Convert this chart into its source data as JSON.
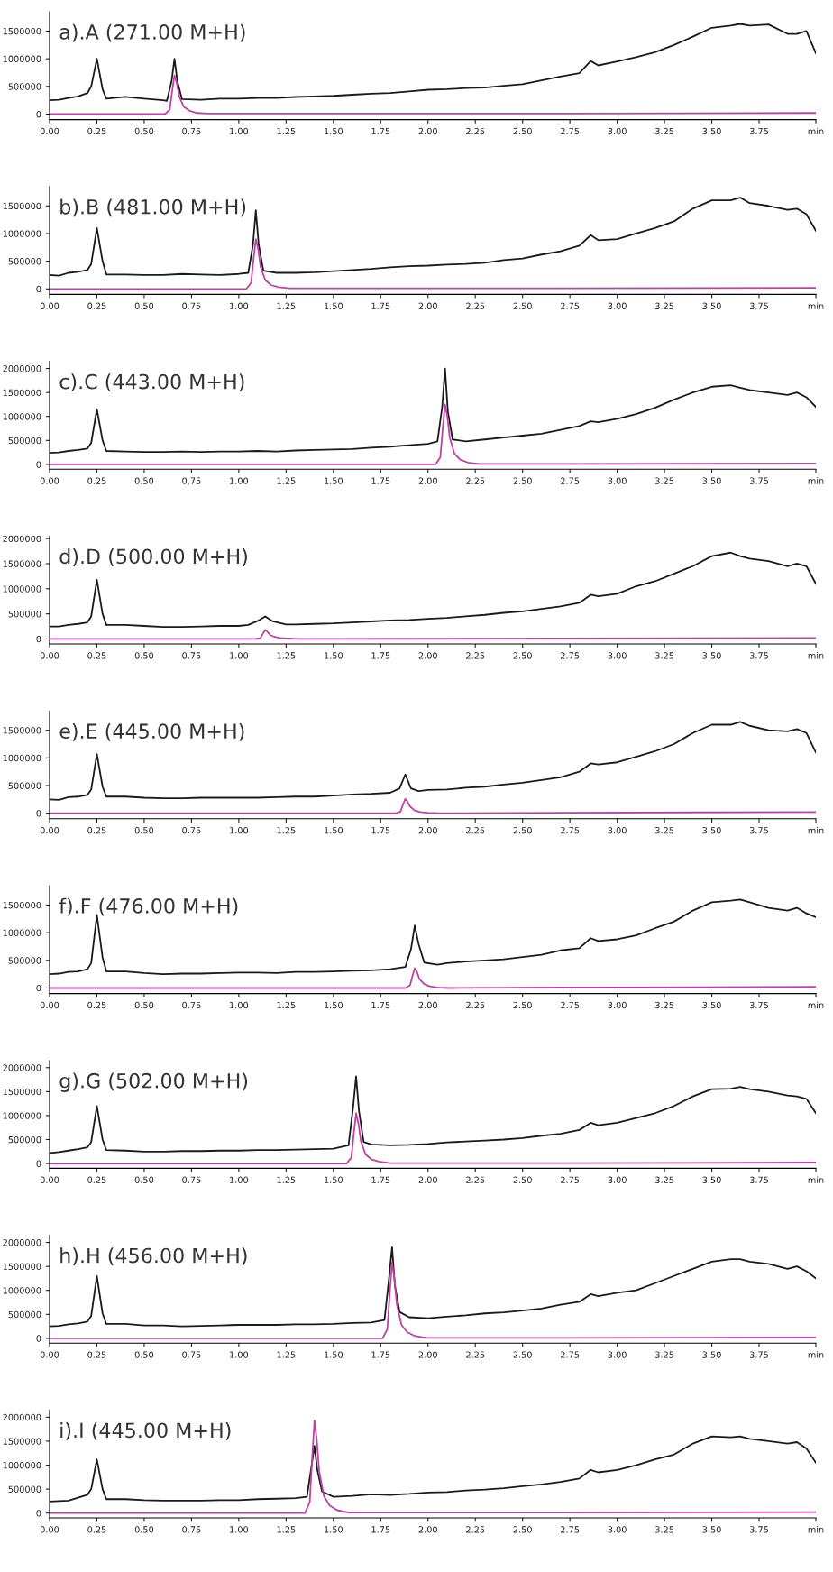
{
  "chart_data": [
    {
      "type": "line",
      "title": "a).A (271.00 M+H)",
      "ylim": [
        -100000,
        1850000
      ],
      "yticks": [
        0,
        500000,
        1000000,
        1500000
      ],
      "xlim": [
        0,
        4.05
      ],
      "xticks": [
        {
          "value": 0,
          "label": "0.00"
        },
        {
          "value": 0.25,
          "label": "0.25"
        },
        {
          "value": 0.5,
          "label": "0.50"
        },
        {
          "value": 0.75,
          "label": "0.75"
        },
        {
          "value": 1,
          "label": "1.00"
        },
        {
          "value": 1.25,
          "label": "1.25"
        },
        {
          "value": 1.5,
          "label": "1.50"
        },
        {
          "value": 1.75,
          "label": "1.75"
        },
        {
          "value": 2,
          "label": "2.00"
        },
        {
          "value": 2.25,
          "label": "2.25"
        },
        {
          "value": 2.5,
          "label": "2.50"
        },
        {
          "value": 2.75,
          "label": "2.75"
        },
        {
          "value": 3,
          "label": "3.00"
        },
        {
          "value": 3.25,
          "label": "3.25"
        },
        {
          "value": 3.5,
          "label": "3.50"
        },
        {
          "value": 3.75,
          "label": "3.75"
        },
        {
          "value": 4.05,
          "label": "min"
        }
      ],
      "grid": false,
      "marker": "none",
      "line_style": "solid",
      "series": [
        {
          "color": "#1a1a1a",
          "x": [
            0,
            0.05,
            0.1,
            0.15,
            0.2,
            0.22,
            0.25,
            0.28,
            0.3,
            0.4,
            0.5,
            0.6,
            0.62,
            0.645,
            0.66,
            0.675,
            0.7,
            0.8,
            0.9,
            1.0,
            1.1,
            1.2,
            1.3,
            1.4,
            1.5,
            1.6,
            1.7,
            1.8,
            1.9,
            2.0,
            2.1,
            2.2,
            2.3,
            2.4,
            2.5,
            2.6,
            2.7,
            2.8,
            2.86,
            2.9,
            3.0,
            3.1,
            3.2,
            3.3,
            3.4,
            3.5,
            3.6,
            3.65,
            3.7,
            3.8,
            3.9,
            3.95,
            4.0,
            4.05
          ],
          "values": [
            250000,
            260000,
            290000,
            320000,
            380000,
            500000,
            1000000,
            450000,
            280000,
            310000,
            280000,
            250000,
            240000,
            600000,
            1000000,
            600000,
            270000,
            260000,
            280000,
            280000,
            290000,
            290000,
            310000,
            320000,
            330000,
            350000,
            370000,
            380000,
            410000,
            440000,
            450000,
            470000,
            480000,
            510000,
            540000,
            610000,
            680000,
            740000,
            960000,
            880000,
            950000,
            1030000,
            1120000,
            1250000,
            1400000,
            1560000,
            1600000,
            1630000,
            1600000,
            1620000,
            1450000,
            1450000,
            1500000,
            1100000
          ]
        },
        {
          "color": "#c040a8",
          "x": [
            0,
            0.61,
            0.635,
            0.648,
            0.66,
            0.672,
            0.685,
            0.71,
            0.74,
            0.78,
            0.84,
            2.7,
            4.05
          ],
          "values": [
            0,
            0,
            80000,
            420000,
            700000,
            560000,
            320000,
            130000,
            60000,
            20000,
            10000,
            10000,
            20000
          ]
        }
      ]
    },
    {
      "type": "line",
      "title": "b).B (481.00 M+H)",
      "ylim": [
        -100000,
        1850000
      ],
      "yticks": [
        0,
        500000,
        1000000,
        1500000
      ],
      "xlim": [
        0,
        4.05
      ],
      "xticks": [
        {
          "value": 0,
          "label": "0.00"
        },
        {
          "value": 0.25,
          "label": "0.25"
        },
        {
          "value": 0.5,
          "label": "0.50"
        },
        {
          "value": 0.75,
          "label": "0.75"
        },
        {
          "value": 1,
          "label": "1.00"
        },
        {
          "value": 1.25,
          "label": "1.25"
        },
        {
          "value": 1.5,
          "label": "1.50"
        },
        {
          "value": 1.75,
          "label": "1.75"
        },
        {
          "value": 2,
          "label": "2.00"
        },
        {
          "value": 2.25,
          "label": "2.25"
        },
        {
          "value": 2.5,
          "label": "2.50"
        },
        {
          "value": 2.75,
          "label": "2.75"
        },
        {
          "value": 3,
          "label": "3.00"
        },
        {
          "value": 3.25,
          "label": "3.25"
        },
        {
          "value": 3.5,
          "label": "3.50"
        },
        {
          "value": 3.75,
          "label": "3.75"
        },
        {
          "value": 4.05,
          "label": "min"
        }
      ],
      "grid": false,
      "marker": "none",
      "line_style": "solid",
      "series": [
        {
          "color": "#1a1a1a",
          "x": [
            0,
            0.05,
            0.1,
            0.15,
            0.2,
            0.22,
            0.25,
            0.28,
            0.3,
            0.4,
            0.5,
            0.6,
            0.7,
            0.8,
            0.9,
            1.0,
            1.05,
            1.075,
            1.09,
            1.105,
            1.13,
            1.2,
            1.3,
            1.4,
            1.5,
            1.6,
            1.7,
            1.8,
            1.9,
            2.0,
            2.1,
            2.2,
            2.3,
            2.4,
            2.5,
            2.6,
            2.7,
            2.8,
            2.86,
            2.9,
            3.0,
            3.1,
            3.2,
            3.3,
            3.4,
            3.5,
            3.6,
            3.65,
            3.7,
            3.8,
            3.9,
            3.95,
            4.0,
            4.05
          ],
          "values": [
            250000,
            240000,
            290000,
            310000,
            340000,
            450000,
            1100000,
            500000,
            260000,
            260000,
            250000,
            250000,
            270000,
            260000,
            250000,
            270000,
            290000,
            800000,
            1420000,
            800000,
            330000,
            290000,
            290000,
            300000,
            320000,
            340000,
            360000,
            390000,
            410000,
            420000,
            440000,
            450000,
            470000,
            520000,
            550000,
            620000,
            680000,
            780000,
            970000,
            880000,
            900000,
            1000000,
            1100000,
            1220000,
            1450000,
            1600000,
            1600000,
            1650000,
            1550000,
            1500000,
            1430000,
            1450000,
            1350000,
            1050000
          ]
        },
        {
          "color": "#c040a8",
          "x": [
            0,
            1.04,
            1.065,
            1.078,
            1.09,
            1.102,
            1.115,
            1.14,
            1.17,
            1.21,
            1.27,
            2.7,
            4.05
          ],
          "values": [
            0,
            0,
            110000,
            540000,
            900000,
            720000,
            400000,
            160000,
            70000,
            30000,
            10000,
            10000,
            20000
          ]
        }
      ]
    },
    {
      "type": "line",
      "title": "c).C (443.00 M+H)",
      "ylim": [
        -100000,
        2150000
      ],
      "yticks": [
        0,
        500000,
        1000000,
        1500000,
        2000000
      ],
      "xlim": [
        0,
        4.05
      ],
      "xticks": [
        {
          "value": 0,
          "label": "0.00"
        },
        {
          "value": 0.25,
          "label": "0.25"
        },
        {
          "value": 0.5,
          "label": "0.50"
        },
        {
          "value": 0.75,
          "label": "0.75"
        },
        {
          "value": 1,
          "label": "1.00"
        },
        {
          "value": 1.25,
          "label": "1.25"
        },
        {
          "value": 1.5,
          "label": "1.50"
        },
        {
          "value": 1.75,
          "label": "1.75"
        },
        {
          "value": 2,
          "label": "2.00"
        },
        {
          "value": 2.25,
          "label": "2.25"
        },
        {
          "value": 2.5,
          "label": "2.50"
        },
        {
          "value": 2.75,
          "label": "2.75"
        },
        {
          "value": 3,
          "label": "3.00"
        },
        {
          "value": 3.25,
          "label": "3.25"
        },
        {
          "value": 3.5,
          "label": "3.50"
        },
        {
          "value": 3.75,
          "label": "3.75"
        },
        {
          "value": 4.05,
          "label": "min"
        }
      ],
      "grid": false,
      "marker": "none",
      "line_style": "solid",
      "series": [
        {
          "color": "#1a1a1a",
          "x": [
            0,
            0.05,
            0.1,
            0.15,
            0.2,
            0.22,
            0.25,
            0.28,
            0.3,
            0.4,
            0.5,
            0.6,
            0.7,
            0.8,
            0.9,
            1.0,
            1.1,
            1.2,
            1.3,
            1.4,
            1.5,
            1.6,
            1.7,
            1.8,
            1.9,
            2.0,
            2.05,
            2.075,
            2.09,
            2.105,
            2.13,
            2.2,
            2.3,
            2.4,
            2.5,
            2.6,
            2.7,
            2.8,
            2.86,
            2.9,
            3.0,
            3.1,
            3.2,
            3.3,
            3.4,
            3.5,
            3.6,
            3.65,
            3.7,
            3.8,
            3.9,
            3.95,
            4.0,
            4.05
          ],
          "values": [
            240000,
            250000,
            280000,
            300000,
            330000,
            450000,
            1150000,
            500000,
            280000,
            270000,
            260000,
            260000,
            270000,
            260000,
            270000,
            270000,
            280000,
            270000,
            290000,
            300000,
            310000,
            320000,
            350000,
            370000,
            400000,
            430000,
            480000,
            1200000,
            2000000,
            1100000,
            520000,
            480000,
            520000,
            560000,
            600000,
            640000,
            720000,
            800000,
            900000,
            880000,
            950000,
            1050000,
            1180000,
            1350000,
            1500000,
            1620000,
            1650000,
            1600000,
            1550000,
            1500000,
            1450000,
            1500000,
            1400000,
            1200000
          ]
        },
        {
          "color": "#c040a8",
          "x": [
            0,
            2.04,
            2.065,
            2.078,
            2.09,
            2.102,
            2.115,
            2.14,
            2.17,
            2.21,
            2.27,
            2.7,
            4.05
          ],
          "values": [
            0,
            0,
            150000,
            750000,
            1250000,
            1000000,
            560000,
            220000,
            100000,
            40000,
            10000,
            10000,
            20000
          ]
        }
      ]
    },
    {
      "type": "line",
      "title": "d).D (500.00 M+H)",
      "ylim": [
        -100000,
        2050000
      ],
      "yticks": [
        0,
        500000,
        1000000,
        1500000,
        2000000
      ],
      "xlim": [
        0,
        4.05
      ],
      "xticks": [
        {
          "value": 0,
          "label": "0.00"
        },
        {
          "value": 0.25,
          "label": "0.25"
        },
        {
          "value": 0.5,
          "label": "0.50"
        },
        {
          "value": 0.75,
          "label": "0.75"
        },
        {
          "value": 1,
          "label": "1.00"
        },
        {
          "value": 1.25,
          "label": "1.25"
        },
        {
          "value": 1.5,
          "label": "1.50"
        },
        {
          "value": 1.75,
          "label": "1.75"
        },
        {
          "value": 2,
          "label": "2.00"
        },
        {
          "value": 2.25,
          "label": "2.25"
        },
        {
          "value": 2.5,
          "label": "2.50"
        },
        {
          "value": 2.75,
          "label": "2.75"
        },
        {
          "value": 3,
          "label": "3.00"
        },
        {
          "value": 3.25,
          "label": "3.25"
        },
        {
          "value": 3.5,
          "label": "3.50"
        },
        {
          "value": 3.75,
          "label": "3.75"
        },
        {
          "value": 4.05,
          "label": "min"
        }
      ],
      "grid": false,
      "marker": "none",
      "line_style": "solid",
      "series": [
        {
          "color": "#1a1a1a",
          "x": [
            0,
            0.05,
            0.1,
            0.15,
            0.2,
            0.22,
            0.25,
            0.28,
            0.3,
            0.4,
            0.5,
            0.6,
            0.7,
            0.8,
            0.9,
            1.0,
            1.05,
            1.1,
            1.14,
            1.18,
            1.25,
            1.3,
            1.4,
            1.5,
            1.6,
            1.7,
            1.8,
            1.9,
            2.0,
            2.1,
            2.2,
            2.3,
            2.4,
            2.5,
            2.6,
            2.7,
            2.8,
            2.86,
            2.9,
            3.0,
            3.1,
            3.2,
            3.3,
            3.4,
            3.5,
            3.6,
            3.65,
            3.7,
            3.8,
            3.9,
            3.95,
            4.0,
            4.05
          ],
          "values": [
            250000,
            250000,
            280000,
            300000,
            330000,
            450000,
            1180000,
            500000,
            280000,
            280000,
            260000,
            240000,
            240000,
            250000,
            260000,
            260000,
            280000,
            360000,
            450000,
            350000,
            290000,
            290000,
            300000,
            310000,
            330000,
            350000,
            370000,
            380000,
            400000,
            420000,
            450000,
            480000,
            520000,
            550000,
            600000,
            650000,
            720000,
            880000,
            850000,
            900000,
            1050000,
            1150000,
            1300000,
            1450000,
            1650000,
            1720000,
            1650000,
            1600000,
            1550000,
            1450000,
            1500000,
            1450000,
            1100000
          ]
        },
        {
          "color": "#c040a8",
          "x": [
            0,
            1.09,
            1.115,
            1.128,
            1.14,
            1.152,
            1.165,
            1.19,
            1.22,
            1.26,
            1.32,
            2.7,
            4.05
          ],
          "values": [
            0,
            0,
            20000,
            110000,
            180000,
            140000,
            80000,
            40000,
            20000,
            10000,
            0,
            10000,
            20000
          ]
        }
      ]
    },
    {
      "type": "line",
      "title": "e).E (445.00 M+H)",
      "ylim": [
        -100000,
        1850000
      ],
      "yticks": [
        0,
        500000,
        1000000,
        1500000
      ],
      "xlim": [
        0,
        4.05
      ],
      "xticks": [
        {
          "value": 0,
          "label": "0.00"
        },
        {
          "value": 0.25,
          "label": "0.25"
        },
        {
          "value": 0.5,
          "label": "0.50"
        },
        {
          "value": 0.75,
          "label": "0.75"
        },
        {
          "value": 1,
          "label": "1.00"
        },
        {
          "value": 1.25,
          "label": "1.25"
        },
        {
          "value": 1.5,
          "label": "1.50"
        },
        {
          "value": 1.75,
          "label": "1.75"
        },
        {
          "value": 2,
          "label": "2.00"
        },
        {
          "value": 2.25,
          "label": "2.25"
        },
        {
          "value": 2.5,
          "label": "2.50"
        },
        {
          "value": 2.75,
          "label": "2.75"
        },
        {
          "value": 3,
          "label": "3.00"
        },
        {
          "value": 3.25,
          "label": "3.25"
        },
        {
          "value": 3.5,
          "label": "3.50"
        },
        {
          "value": 3.75,
          "label": "3.75"
        },
        {
          "value": 4.05,
          "label": "min"
        }
      ],
      "grid": false,
      "marker": "none",
      "line_style": "solid",
      "series": [
        {
          "color": "#1a1a1a",
          "x": [
            0,
            0.05,
            0.1,
            0.15,
            0.2,
            0.22,
            0.25,
            0.28,
            0.3,
            0.4,
            0.5,
            0.6,
            0.7,
            0.8,
            0.9,
            1.0,
            1.1,
            1.2,
            1.3,
            1.4,
            1.5,
            1.6,
            1.7,
            1.8,
            1.85,
            1.88,
            1.91,
            1.95,
            2.0,
            2.1,
            2.2,
            2.3,
            2.4,
            2.5,
            2.6,
            2.7,
            2.8,
            2.86,
            2.9,
            3.0,
            3.1,
            3.2,
            3.3,
            3.4,
            3.5,
            3.6,
            3.65,
            3.7,
            3.8,
            3.9,
            3.95,
            4.0,
            4.05
          ],
          "values": [
            250000,
            240000,
            290000,
            300000,
            330000,
            430000,
            1070000,
            480000,
            300000,
            300000,
            280000,
            270000,
            270000,
            280000,
            280000,
            280000,
            280000,
            290000,
            300000,
            300000,
            320000,
            340000,
            350000,
            370000,
            450000,
            700000,
            450000,
            400000,
            420000,
            430000,
            460000,
            480000,
            520000,
            550000,
            600000,
            650000,
            750000,
            900000,
            880000,
            920000,
            1020000,
            1120000,
            1250000,
            1450000,
            1600000,
            1600000,
            1650000,
            1580000,
            1500000,
            1480000,
            1520000,
            1450000,
            1100000
          ]
        },
        {
          "color": "#c040a8",
          "x": [
            0,
            1.83,
            1.855,
            1.868,
            1.88,
            1.892,
            1.905,
            1.93,
            1.96,
            2.0,
            2.06,
            2.7,
            4.05
          ],
          "values": [
            0,
            0,
            30000,
            160000,
            260000,
            210000,
            120000,
            50000,
            20000,
            10000,
            0,
            10000,
            20000
          ]
        }
      ]
    },
    {
      "type": "line",
      "title": "f).F (476.00 M+H)",
      "ylim": [
        -100000,
        1850000
      ],
      "yticks": [
        0,
        500000,
        1000000,
        1500000
      ],
      "xlim": [
        0,
        4.05
      ],
      "xticks": [
        {
          "value": 0,
          "label": "0.00"
        },
        {
          "value": 0.25,
          "label": "0.25"
        },
        {
          "value": 0.5,
          "label": "0.50"
        },
        {
          "value": 0.75,
          "label": "0.75"
        },
        {
          "value": 1,
          "label": "1.00"
        },
        {
          "value": 1.25,
          "label": "1.25"
        },
        {
          "value": 1.5,
          "label": "1.50"
        },
        {
          "value": 1.75,
          "label": "1.75"
        },
        {
          "value": 2,
          "label": "2.00"
        },
        {
          "value": 2.25,
          "label": "2.25"
        },
        {
          "value": 2.5,
          "label": "2.50"
        },
        {
          "value": 2.75,
          "label": "2.75"
        },
        {
          "value": 3,
          "label": "3.00"
        },
        {
          "value": 3.25,
          "label": "3.25"
        },
        {
          "value": 3.5,
          "label": "3.50"
        },
        {
          "value": 3.75,
          "label": "3.75"
        },
        {
          "value": 4.05,
          "label": "min"
        }
      ],
      "grid": false,
      "marker": "none",
      "line_style": "solid",
      "series": [
        {
          "color": "#1a1a1a",
          "x": [
            0,
            0.05,
            0.1,
            0.15,
            0.2,
            0.22,
            0.25,
            0.28,
            0.3,
            0.4,
            0.5,
            0.6,
            0.7,
            0.8,
            0.9,
            1.0,
            1.1,
            1.2,
            1.3,
            1.4,
            1.5,
            1.6,
            1.7,
            1.8,
            1.88,
            1.91,
            1.93,
            1.95,
            1.98,
            2.05,
            2.1,
            2.2,
            2.3,
            2.4,
            2.5,
            2.6,
            2.7,
            2.8,
            2.86,
            2.9,
            3.0,
            3.1,
            3.2,
            3.3,
            3.4,
            3.5,
            3.6,
            3.65,
            3.7,
            3.8,
            3.9,
            3.95,
            4.0,
            4.05
          ],
          "values": [
            250000,
            260000,
            290000,
            300000,
            340000,
            450000,
            1320000,
            550000,
            300000,
            300000,
            270000,
            250000,
            260000,
            260000,
            270000,
            280000,
            280000,
            270000,
            290000,
            290000,
            300000,
            310000,
            320000,
            340000,
            380000,
            700000,
            1130000,
            800000,
            460000,
            420000,
            450000,
            480000,
            500000,
            520000,
            560000,
            600000,
            680000,
            720000,
            900000,
            850000,
            880000,
            950000,
            1080000,
            1200000,
            1400000,
            1550000,
            1580000,
            1600000,
            1550000,
            1450000,
            1400000,
            1450000,
            1350000,
            1280000
          ]
        },
        {
          "color": "#c040a8",
          "x": [
            0,
            1.88,
            1.905,
            1.918,
            1.93,
            1.942,
            1.955,
            1.98,
            2.01,
            2.05,
            2.11,
            2.7,
            4.05
          ],
          "values": [
            0,
            0,
            50000,
            220000,
            360000,
            290000,
            160000,
            70000,
            30000,
            10000,
            0,
            10000,
            20000
          ]
        }
      ]
    },
    {
      "type": "line",
      "title": "g).G (502.00 M+H)",
      "ylim": [
        -100000,
        2150000
      ],
      "yticks": [
        0,
        500000,
        1000000,
        1500000,
        2000000
      ],
      "xlim": [
        0,
        4.05
      ],
      "xticks": [
        {
          "value": 0,
          "label": "0.00"
        },
        {
          "value": 0.25,
          "label": "0.25"
        },
        {
          "value": 0.5,
          "label": "0.50"
        },
        {
          "value": 0.75,
          "label": "0.75"
        },
        {
          "value": 1,
          "label": "1.00"
        },
        {
          "value": 1.25,
          "label": "1.25"
        },
        {
          "value": 1.5,
          "label": "1.50"
        },
        {
          "value": 1.75,
          "label": "1.75"
        },
        {
          "value": 2,
          "label": "2.00"
        },
        {
          "value": 2.25,
          "label": "2.25"
        },
        {
          "value": 2.5,
          "label": "2.50"
        },
        {
          "value": 2.75,
          "label": "2.75"
        },
        {
          "value": 3,
          "label": "3.00"
        },
        {
          "value": 3.25,
          "label": "3.25"
        },
        {
          "value": 3.5,
          "label": "3.50"
        },
        {
          "value": 3.75,
          "label": "3.75"
        },
        {
          "value": 4.05,
          "label": "min"
        }
      ],
      "grid": false,
      "marker": "none",
      "line_style": "solid",
      "series": [
        {
          "color": "#1a1a1a",
          "x": [
            0,
            0.05,
            0.1,
            0.15,
            0.2,
            0.22,
            0.25,
            0.28,
            0.3,
            0.4,
            0.5,
            0.6,
            0.7,
            0.8,
            0.9,
            1.0,
            1.1,
            1.2,
            1.3,
            1.4,
            1.5,
            1.58,
            1.605,
            1.62,
            1.635,
            1.66,
            1.7,
            1.8,
            1.9,
            2.0,
            2.1,
            2.2,
            2.3,
            2.4,
            2.5,
            2.6,
            2.7,
            2.8,
            2.86,
            2.9,
            3.0,
            3.1,
            3.2,
            3.3,
            3.4,
            3.5,
            3.6,
            3.65,
            3.7,
            3.8,
            3.9,
            3.95,
            4.0,
            4.05
          ],
          "values": [
            220000,
            240000,
            270000,
            300000,
            340000,
            450000,
            1200000,
            500000,
            280000,
            270000,
            250000,
            250000,
            260000,
            260000,
            270000,
            270000,
            280000,
            280000,
            290000,
            300000,
            310000,
            380000,
            1200000,
            1820000,
            1100000,
            450000,
            400000,
            380000,
            390000,
            410000,
            440000,
            460000,
            480000,
            500000,
            530000,
            580000,
            620000,
            700000,
            850000,
            800000,
            850000,
            950000,
            1050000,
            1200000,
            1400000,
            1550000,
            1560000,
            1600000,
            1550000,
            1500000,
            1420000,
            1400000,
            1350000,
            1050000
          ]
        },
        {
          "color": "#c040a8",
          "x": [
            0,
            1.57,
            1.595,
            1.608,
            1.62,
            1.632,
            1.645,
            1.67,
            1.7,
            1.74,
            1.8,
            2.7,
            4.05
          ],
          "values": [
            0,
            0,
            130000,
            630000,
            1050000,
            840000,
            470000,
            190000,
            90000,
            40000,
            10000,
            10000,
            20000
          ]
        }
      ]
    },
    {
      "type": "line",
      "title": "h).H (456.00 M+H)",
      "ylim": [
        -100000,
        2150000
      ],
      "yticks": [
        0,
        500000,
        1000000,
        1500000,
        2000000
      ],
      "xlim": [
        0,
        4.05
      ],
      "xticks": [
        {
          "value": 0,
          "label": "0.00"
        },
        {
          "value": 0.25,
          "label": "0.25"
        },
        {
          "value": 0.5,
          "label": "0.50"
        },
        {
          "value": 0.75,
          "label": "0.75"
        },
        {
          "value": 1,
          "label": "1.00"
        },
        {
          "value": 1.25,
          "label": "1.25"
        },
        {
          "value": 1.5,
          "label": "1.50"
        },
        {
          "value": 1.75,
          "label": "1.75"
        },
        {
          "value": 2,
          "label": "2.00"
        },
        {
          "value": 2.25,
          "label": "2.25"
        },
        {
          "value": 2.5,
          "label": "2.50"
        },
        {
          "value": 2.75,
          "label": "2.75"
        },
        {
          "value": 3,
          "label": "3.00"
        },
        {
          "value": 3.25,
          "label": "3.25"
        },
        {
          "value": 3.5,
          "label": "3.50"
        },
        {
          "value": 3.75,
          "label": "3.75"
        },
        {
          "value": 4.05,
          "label": "min"
        }
      ],
      "grid": false,
      "marker": "none",
      "line_style": "solid",
      "series": [
        {
          "color": "#1a1a1a",
          "x": [
            0,
            0.05,
            0.1,
            0.15,
            0.2,
            0.22,
            0.25,
            0.28,
            0.3,
            0.4,
            0.5,
            0.6,
            0.7,
            0.8,
            0.9,
            1.0,
            1.1,
            1.2,
            1.3,
            1.4,
            1.5,
            1.6,
            1.7,
            1.77,
            1.795,
            1.81,
            1.825,
            1.85,
            1.9,
            2.0,
            2.1,
            2.2,
            2.3,
            2.4,
            2.5,
            2.6,
            2.7,
            2.8,
            2.86,
            2.9,
            3.0,
            3.1,
            3.2,
            3.3,
            3.4,
            3.5,
            3.6,
            3.65,
            3.7,
            3.8,
            3.9,
            3.95,
            4.0,
            4.05
          ],
          "values": [
            250000,
            260000,
            290000,
            310000,
            350000,
            470000,
            1300000,
            520000,
            300000,
            300000,
            270000,
            270000,
            250000,
            260000,
            270000,
            280000,
            280000,
            280000,
            290000,
            290000,
            300000,
            320000,
            330000,
            380000,
            1300000,
            1900000,
            1100000,
            550000,
            440000,
            420000,
            450000,
            480000,
            520000,
            540000,
            580000,
            620000,
            700000,
            760000,
            920000,
            880000,
            950000,
            1000000,
            1150000,
            1300000,
            1450000,
            1600000,
            1650000,
            1650000,
            1600000,
            1550000,
            1450000,
            1500000,
            1400000,
            1250000
          ]
        },
        {
          "color": "#c040a8",
          "x": [
            0,
            1.76,
            1.785,
            1.798,
            1.81,
            1.822,
            1.835,
            1.86,
            1.89,
            1.93,
            1.99,
            2.7,
            4.05
          ],
          "values": [
            0,
            0,
            190000,
            950000,
            1580000,
            1260000,
            710000,
            280000,
            130000,
            50000,
            10000,
            10000,
            20000
          ]
        }
      ]
    },
    {
      "type": "line",
      "title": "i).I (445.00 M+H)",
      "ylim": [
        -100000,
        2150000
      ],
      "yticks": [
        0,
        500000,
        1000000,
        1500000,
        2000000
      ],
      "xlim": [
        0,
        4.05
      ],
      "xticks": [
        {
          "value": 0,
          "label": "0.00"
        },
        {
          "value": 0.25,
          "label": "0.25"
        },
        {
          "value": 0.5,
          "label": "0.50"
        },
        {
          "value": 0.75,
          "label": "0.75"
        },
        {
          "value": 1,
          "label": "1.00"
        },
        {
          "value": 1.25,
          "label": "1.25"
        },
        {
          "value": 1.5,
          "label": "1.50"
        },
        {
          "value": 1.75,
          "label": "1.75"
        },
        {
          "value": 2,
          "label": "2.00"
        },
        {
          "value": 2.25,
          "label": "2.25"
        },
        {
          "value": 2.5,
          "label": "2.50"
        },
        {
          "value": 2.75,
          "label": "2.75"
        },
        {
          "value": 3,
          "label": "3.00"
        },
        {
          "value": 3.25,
          "label": "3.25"
        },
        {
          "value": 3.5,
          "label": "3.50"
        },
        {
          "value": 3.75,
          "label": "3.75"
        },
        {
          "value": 4.05,
          "label": "min"
        }
      ],
      "grid": false,
      "marker": "none",
      "line_style": "solid",
      "series": [
        {
          "color": "#1a1a1a",
          "x": [
            0,
            0.05,
            0.1,
            0.15,
            0.2,
            0.22,
            0.25,
            0.28,
            0.3,
            0.4,
            0.5,
            0.6,
            0.7,
            0.8,
            0.9,
            1.0,
            1.1,
            1.2,
            1.3,
            1.36,
            1.385,
            1.4,
            1.415,
            1.44,
            1.5,
            1.6,
            1.7,
            1.8,
            1.9,
            2.0,
            2.1,
            2.2,
            2.3,
            2.4,
            2.5,
            2.6,
            2.7,
            2.8,
            2.86,
            2.9,
            3.0,
            3.1,
            3.2,
            3.3,
            3.4,
            3.5,
            3.6,
            3.65,
            3.7,
            3.8,
            3.9,
            3.95,
            4.0,
            4.05
          ],
          "values": [
            240000,
            250000,
            260000,
            320000,
            380000,
            500000,
            1120000,
            500000,
            290000,
            290000,
            270000,
            260000,
            260000,
            260000,
            270000,
            270000,
            290000,
            300000,
            310000,
            340000,
            1000000,
            1400000,
            900000,
            450000,
            340000,
            360000,
            390000,
            380000,
            400000,
            430000,
            440000,
            470000,
            490000,
            520000,
            560000,
            600000,
            650000,
            720000,
            900000,
            850000,
            900000,
            1000000,
            1120000,
            1220000,
            1450000,
            1600000,
            1580000,
            1600000,
            1550000,
            1500000,
            1450000,
            1480000,
            1350000,
            1050000
          ]
        },
        {
          "color": "#c040a8",
          "x": [
            0,
            1.35,
            1.375,
            1.388,
            1.4,
            1.412,
            1.425,
            1.45,
            1.48,
            1.52,
            1.58,
            2.7,
            4.05
          ],
          "values": [
            0,
            0,
            230000,
            1160000,
            1930000,
            1540000,
            870000,
            350000,
            160000,
            60000,
            10000,
            10000,
            20000
          ]
        }
      ]
    }
  ]
}
